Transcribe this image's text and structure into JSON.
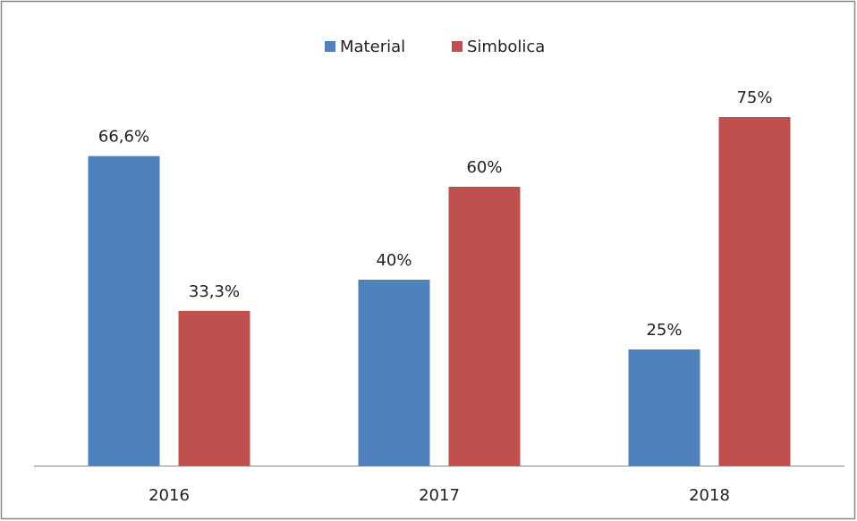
{
  "chart_data": {
    "type": "bar",
    "categories": [
      "2016",
      "2017",
      "2018"
    ],
    "series": [
      {
        "name": "Material",
        "color": "#4f81bd",
        "values": [
          66.6,
          40,
          25
        ],
        "value_labels": [
          "66,6%",
          "40%",
          "25%"
        ]
      },
      {
        "name": "Simbolica",
        "color": "#c0504d",
        "values": [
          33.3,
          60,
          75
        ],
        "value_labels": [
          "33,3%",
          "60%",
          "75%"
        ]
      }
    ],
    "legend": "top"
  }
}
